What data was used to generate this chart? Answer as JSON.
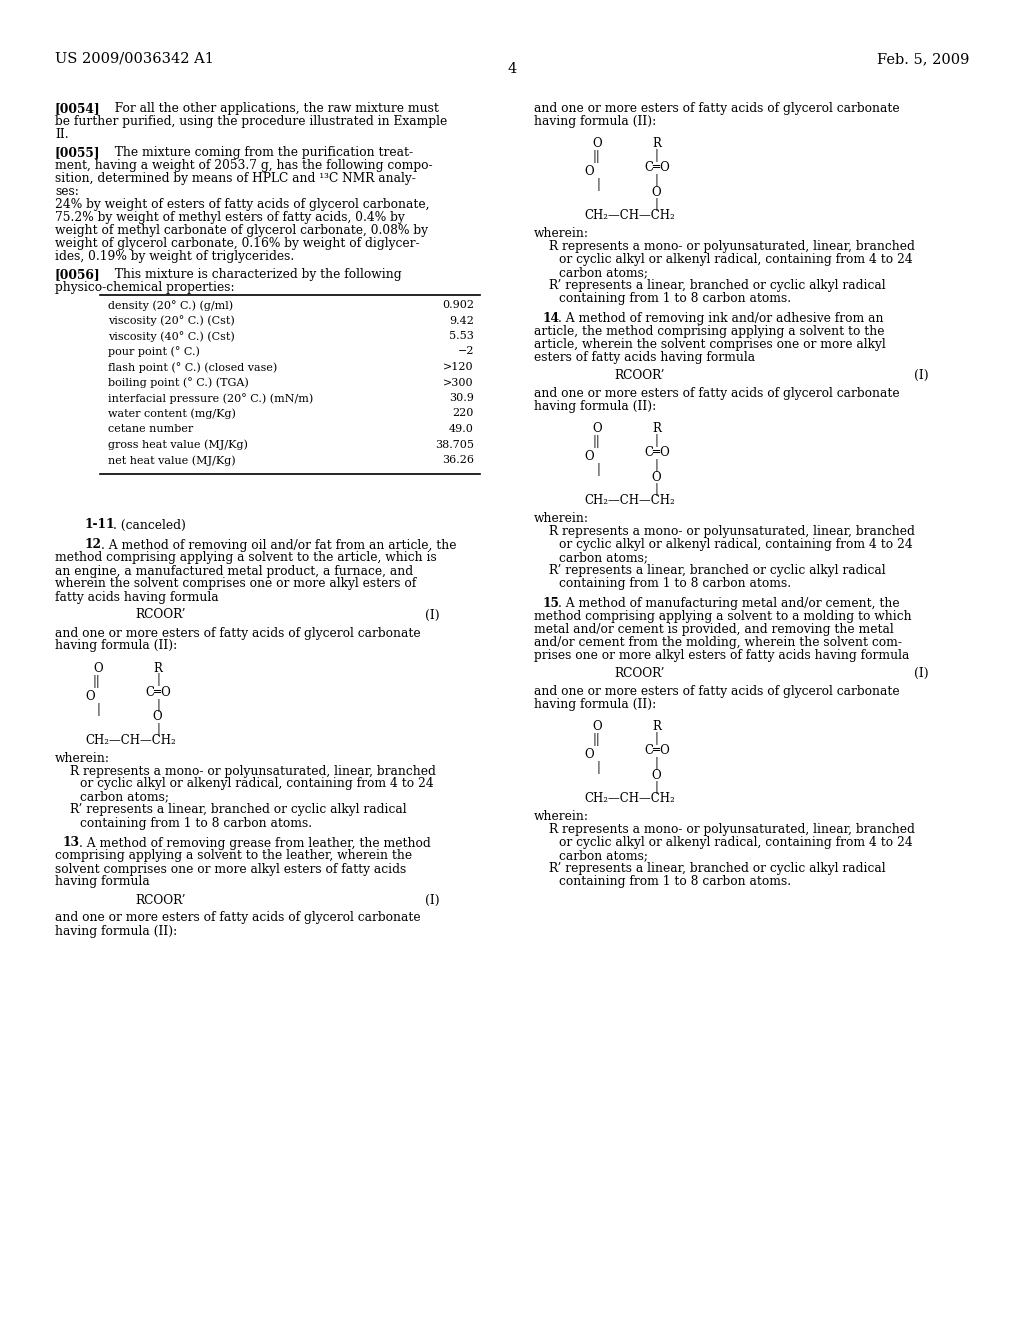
{
  "bg": "#ffffff",
  "fg": "#000000",
  "header_left": "US 2009/0036342 A1",
  "header_right": "Feb. 5, 2009",
  "page_num": "4",
  "table_rows": [
    [
      "density (20° C.) (g/ml)",
      "0.902"
    ],
    [
      "viscosity (20° C.) (Cst)",
      "9.42"
    ],
    [
      "viscosity (40° C.) (Cst)",
      "5.53"
    ],
    [
      "pour point (° C.)",
      "−2"
    ],
    [
      "flash point (° C.) (closed vase)",
      ">120"
    ],
    [
      "boiling point (° C.) (TGA)",
      ">300"
    ],
    [
      "interfacial pressure (20° C.) (mN/m)",
      "30.9"
    ],
    [
      "water content (mg/Kg)",
      "220"
    ],
    [
      "cetane number",
      "49.0"
    ],
    [
      "gross heat value (MJ/Kg)",
      "38.705"
    ],
    [
      "net heat value (MJ/Kg)",
      "36.26"
    ]
  ]
}
